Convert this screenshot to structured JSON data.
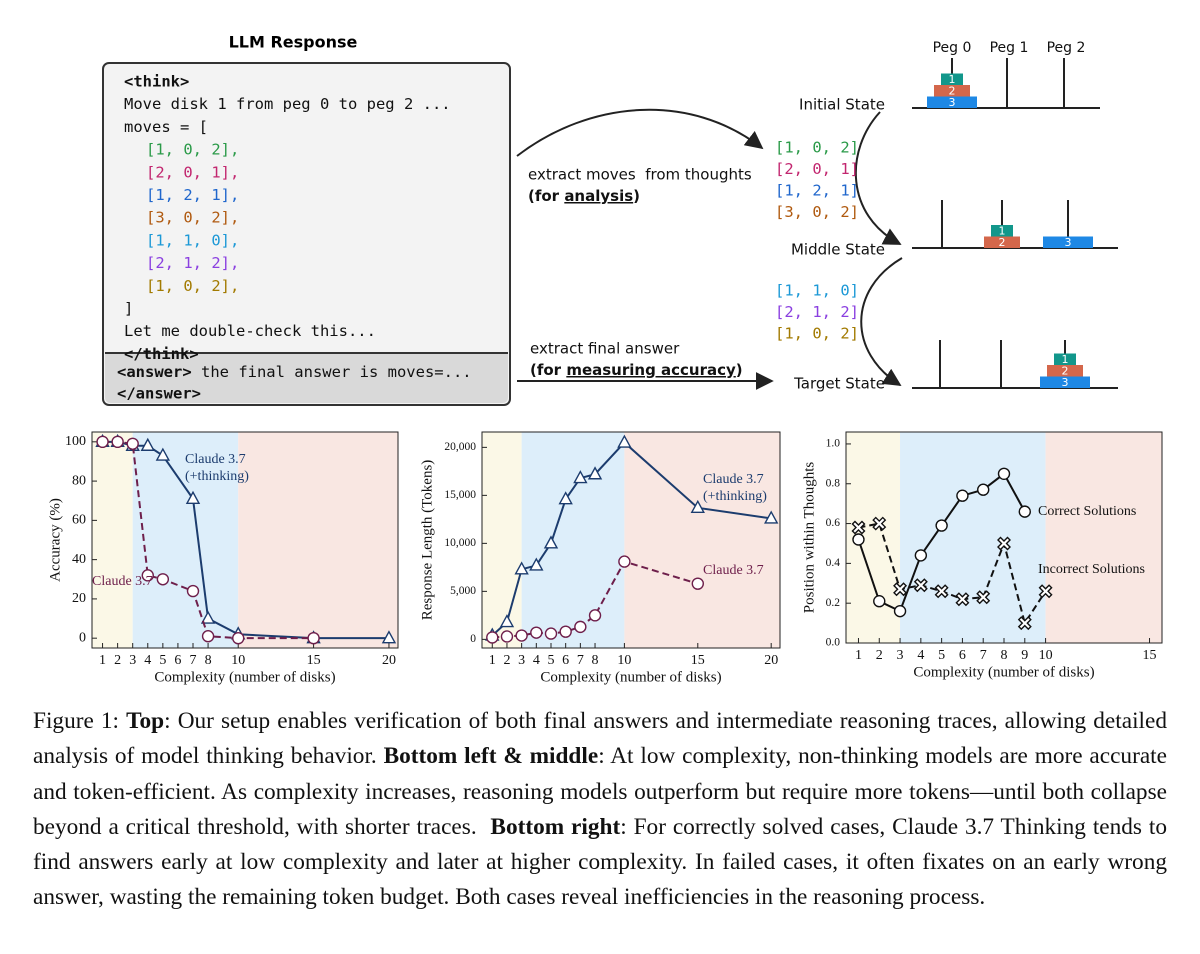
{
  "diagram": {
    "llm_response": {
      "title": "LLM Response",
      "think_open": "<think>",
      "intro": "Move disk 1 from peg 0 to peg 2 ...",
      "list_open": "moves = [",
      "moves": [
        {
          "text": "[1, 0, 2],",
          "color": "#2a9a48"
        },
        {
          "text": "[2, 0, 1],",
          "color": "#c2266f"
        },
        {
          "text": "[1, 2, 1],",
          "color": "#1f66cc"
        },
        {
          "text": "[3, 0, 2],",
          "color": "#b05a10"
        },
        {
          "text": "[1, 1, 0],",
          "color": "#1b98d6"
        },
        {
          "text": "[2, 1, 2],",
          "color": "#8a3fe0"
        },
        {
          "text": "[1, 0, 2],",
          "color": "#a27a00"
        }
      ],
      "list_close": "]",
      "check": "Let me double-check this...",
      "think_close": "</think>",
      "answer_open": "<answer>",
      "answer_text": " the final answer is moves=...",
      "answer_close": "</answer>"
    },
    "analysis_arrow": {
      "line1": "extract moves  from thoughts",
      "prefix": "(for ",
      "emphasis": "analysis",
      "suffix": ")"
    },
    "accuracy_arrow": {
      "line1": "extract final answer",
      "prefix": "(for ",
      "emphasis": "measuring accuracy",
      "suffix": ")"
    },
    "move_groups": [
      [
        {
          "text": "[1, 0, 2]",
          "color": "#2a9a48"
        },
        {
          "text": "[2, 0, 1]",
          "color": "#c2266f"
        },
        {
          "text": "[1, 2, 1]",
          "color": "#1f66cc"
        },
        {
          "text": "[3, 0, 2]",
          "color": "#b05a10"
        }
      ],
      [
        {
          "text": "[1, 1, 0]",
          "color": "#1b98d6"
        },
        {
          "text": "[2, 1, 2]",
          "color": "#8a3fe0"
        },
        {
          "text": "[1, 0, 2]",
          "color": "#a27a00"
        }
      ]
    ],
    "peg_labels": [
      "Peg 0",
      "Peg 1",
      "Peg 2"
    ],
    "disk_colors": [
      "#12978b",
      "#d4674b",
      "#1e88e5"
    ],
    "states": [
      {
        "label": "Initial State",
        "pegs": [
          [
            3,
            2,
            1
          ],
          [],
          []
        ]
      },
      {
        "label": "Middle State",
        "pegs": [
          [],
          [
            2,
            1
          ],
          [
            3
          ]
        ]
      },
      {
        "label": "Target State",
        "pegs": [
          [],
          [],
          [
            3,
            2,
            1
          ]
        ]
      }
    ]
  },
  "chart_data": [
    {
      "type": "line",
      "xlabel": "Complexity (number of disks)",
      "ylabel": "Accuracy (%)",
      "xlim": [
        0.3,
        20.6
      ],
      "ylim": [
        -5,
        105
      ],
      "xticks": [
        1,
        2,
        3,
        4,
        5,
        6,
        7,
        8,
        10,
        15,
        20
      ],
      "yticks": [
        0,
        20,
        40,
        60,
        80,
        100
      ],
      "regions": [
        {
          "from": 0.3,
          "to": 3,
          "color": "#fbf8e7"
        },
        {
          "from": 3,
          "to": 10,
          "color": "#ddeefa"
        },
        {
          "from": 10,
          "to": 20.6,
          "color": "#f9e7e2"
        }
      ],
      "series": [
        {
          "name": [
            "Claude 3.7",
            "(+thinking)"
          ],
          "color": "#1c3c6e",
          "marker": "triangle",
          "dashed": false,
          "x": [
            1,
            2,
            3,
            4,
            5,
            7,
            8,
            10,
            15,
            20
          ],
          "values": [
            100,
            100,
            98,
            98,
            93,
            71,
            10,
            2,
            0,
            0
          ]
        },
        {
          "name": [
            "Claude 3.7"
          ],
          "color": "#6e1f4b",
          "marker": "circle",
          "dashed": true,
          "x": [
            1,
            2,
            3,
            4,
            5,
            7,
            8,
            10,
            15
          ],
          "values": [
            100,
            100,
            99,
            32,
            30,
            24,
            1,
            0,
            0
          ]
        }
      ]
    },
    {
      "type": "line",
      "xlabel": "Complexity (number of disks)",
      "ylabel": "Response Length (Tokens)",
      "xlim": [
        0.3,
        20.6
      ],
      "ylim": [
        -900,
        21600
      ],
      "xticks": [
        1,
        2,
        3,
        4,
        5,
        6,
        7,
        8,
        10,
        15,
        20
      ],
      "yticks": [
        0,
        {
          "value": 5000,
          "label": "5,000"
        },
        {
          "value": 10000,
          "label": "10,000"
        },
        {
          "value": 15000,
          "label": "15,000"
        },
        {
          "value": 20000,
          "label": "20,000"
        }
      ],
      "regions": [
        {
          "from": 0.3,
          "to": 3,
          "color": "#fbf8e7"
        },
        {
          "from": 3,
          "to": 10,
          "color": "#ddeefa"
        },
        {
          "from": 10,
          "to": 20.6,
          "color": "#f9e7e2"
        }
      ],
      "series": [
        {
          "name": [
            "Claude 3.7",
            "(+thinking)"
          ],
          "color": "#1c3c6e",
          "marker": "triangle",
          "dashed": false,
          "x": [
            1,
            2,
            3,
            4,
            5,
            6,
            7,
            8,
            10,
            15,
            20
          ],
          "values": [
            400,
            1800,
            7300,
            7700,
            10000,
            14600,
            16800,
            17200,
            20500,
            13700,
            12600
          ]
        },
        {
          "name": [
            "Claude 3.7"
          ],
          "color": "#6e1f4b",
          "marker": "circle",
          "dashed": true,
          "x": [
            1,
            2,
            3,
            4,
            5,
            6,
            7,
            8,
            10,
            15
          ],
          "values": [
            200,
            300,
            400,
            700,
            600,
            800,
            1300,
            2500,
            8100,
            5800
          ]
        }
      ]
    },
    {
      "type": "line",
      "xlabel": "Complexity (number of disks)",
      "ylabel": "Position within Thoughts",
      "xlim": [
        0.4,
        15.6
      ],
      "ylim": [
        0,
        1.06
      ],
      "xticks": [
        1,
        2,
        3,
        4,
        5,
        6,
        7,
        8,
        9,
        10,
        15
      ],
      "yticks": [
        {
          "value": 0,
          "label": "0.0"
        },
        0.2,
        0.4,
        0.6,
        0.8,
        {
          "value": 1,
          "label": "1.0"
        }
      ],
      "regions": [
        {
          "from": 0.4,
          "to": 3,
          "color": "#fbf8e7"
        },
        {
          "from": 3,
          "to": 10,
          "color": "#ddeefa"
        },
        {
          "from": 10,
          "to": 15.6,
          "color": "#f9e7e2"
        }
      ],
      "series": [
        {
          "name": [
            "Correct Solutions"
          ],
          "color": "#111111",
          "marker": "circle",
          "dashed": false,
          "x": [
            1,
            2,
            3,
            4,
            5,
            6,
            7,
            8,
            9
          ],
          "values": [
            0.52,
            0.21,
            0.16,
            0.44,
            0.59,
            0.74,
            0.77,
            0.85,
            0.66
          ]
        },
        {
          "name": [
            "Incorrect Solutions"
          ],
          "color": "#111111",
          "marker": "x",
          "dashed": true,
          "x": [
            1,
            2,
            3,
            4,
            5,
            6,
            7,
            8,
            9,
            10
          ],
          "values": [
            0.58,
            0.6,
            0.27,
            0.29,
            0.26,
            0.22,
            0.23,
            0.5,
            0.1,
            0.26
          ]
        }
      ]
    }
  ],
  "caption": [
    {
      "text": "Figure 1: ",
      "bold": false
    },
    {
      "text": "Top",
      "bold": true
    },
    {
      "text": ": Our setup enables verification of both final answers and intermediate reasoning traces, allowing detailed analysis of model thinking behavior. ",
      "bold": false
    },
    {
      "text": "Bottom left & middle",
      "bold": true
    },
    {
      "text": ": At low complexity, non-thinking models are more accurate and token-efficient. As complexity increases, reasoning models outperform but require more tokens—until both collapse beyond a critical threshold, with shorter traces.  ",
      "bold": false
    },
    {
      "text": "Bottom right",
      "bold": true
    },
    {
      "text": ": For correctly solved cases, Claude 3.7 Thinking tends to find answers early at low complexity and later at higher complexity. In failed cases, it often fixates on an early wrong answer, wasting the remaining token budget. Both cases reveal inefficiencies in the reasoning process.",
      "bold": false
    }
  ]
}
